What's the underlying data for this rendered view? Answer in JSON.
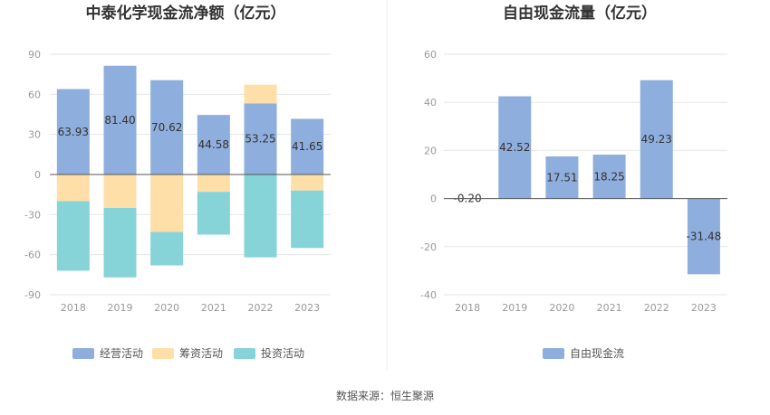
{
  "source": "数据来源：恒生聚源",
  "colors": {
    "operating": "#8eaedd",
    "financing": "#fedfa7",
    "investing": "#86d3d8",
    "fcf": "#8eaedd"
  },
  "chart_data": [
    {
      "type": "bar",
      "stacked": true,
      "title": "中泰化学现金流净额（亿元）",
      "categories": [
        "2018",
        "2019",
        "2020",
        "2021",
        "2022",
        "2023"
      ],
      "ylim": [
        -90,
        90
      ],
      "yticks": [
        "90",
        "60",
        "30",
        "0",
        "-30",
        "-60",
        "-90"
      ],
      "legend_position": "bottom",
      "series": [
        {
          "name": "经营活动",
          "values": [
            63.93,
            81.4,
            70.62,
            44.58,
            53.25,
            41.65
          ],
          "labels": [
            "63.93",
            "81.40",
            "70.62",
            "44.58",
            "53.25",
            "41.65"
          ]
        },
        {
          "name": "筹资活动",
          "values": [
            -20,
            -25,
            -43,
            -13,
            14,
            -12
          ]
        },
        {
          "name": "投资活动",
          "values": [
            -52,
            -52,
            -25,
            -32,
            -62,
            -43
          ]
        }
      ]
    },
    {
      "type": "bar",
      "title": "自由现金流量（亿元）",
      "categories": [
        "2018",
        "2019",
        "2020",
        "2021",
        "2022",
        "2023"
      ],
      "ylim": [
        -40,
        60
      ],
      "yticks": [
        "60",
        "40",
        "20",
        "0",
        "-20",
        "-40"
      ],
      "legend_position": "bottom",
      "series": [
        {
          "name": "自由现金流",
          "values": [
            -0.2,
            42.52,
            17.51,
            18.25,
            49.23,
            -31.48
          ],
          "labels": [
            "-0.20",
            "42.52",
            "17.51",
            "18.25",
            "49.23",
            "-31.48"
          ]
        }
      ]
    }
  ]
}
